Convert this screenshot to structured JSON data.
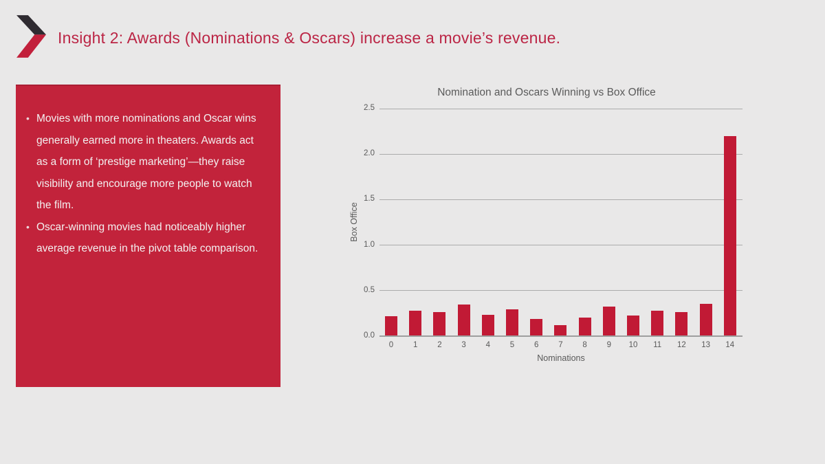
{
  "header": {
    "title": "Insight 2: Awards (Nominations & Oscars) increase a movie’s revenue."
  },
  "logo": {
    "icon": "chevron-right-icon",
    "dark_color": "#2f2b31",
    "red_color": "#c2203b"
  },
  "insight_box": {
    "background": "#c2233b",
    "bullets": [
      "Movies with more nominations and Oscar wins generally earned more in theaters. Awards act as a form of ‘prestige marketing’—they raise visibility and encourage more people to watch the film.",
      "Oscar-winning movies had noticeably higher average revenue in the pivot table comparison."
    ]
  },
  "chart_data": {
    "type": "bar",
    "title": "Nomination and Oscars Winning vs Box Office",
    "xlabel": "Nominations",
    "ylabel": "Box Office",
    "categories": [
      "0",
      "1",
      "2",
      "3",
      "4",
      "5",
      "6",
      "7",
      "8",
      "9",
      "10",
      "11",
      "12",
      "13",
      "14"
    ],
    "values": [
      0.21,
      0.27,
      0.26,
      0.34,
      0.23,
      0.29,
      0.18,
      0.11,
      0.2,
      0.32,
      0.22,
      0.27,
      0.26,
      0.35,
      2.19
    ],
    "ylim": [
      0,
      2.5
    ],
    "yticks": [
      "0.0",
      "0.5",
      "1.0",
      "1.5",
      "2.0",
      "2.5"
    ],
    "grid": true,
    "legend": "none",
    "bar_color": "#c11a35",
    "gridline_color": "#ababab",
    "axis_text_color": "#595959"
  },
  "colors": {
    "background": "#e9e8e8",
    "title_red": "#bb2545",
    "text_light": "#f3f0f0"
  }
}
